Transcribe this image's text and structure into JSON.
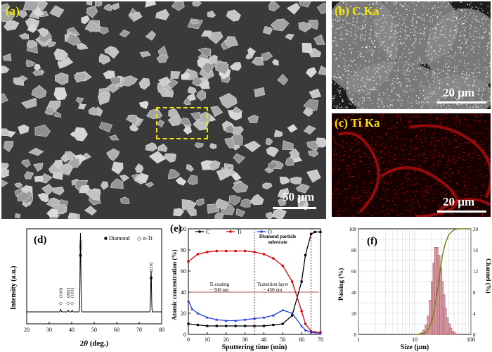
{
  "panels": {
    "a": {
      "label": "(a)",
      "scale": "50 µm"
    },
    "b": {
      "label": "(b) C Ka",
      "scale": "20 µm"
    },
    "c": {
      "label": "(c) Ti Ka",
      "scale": "20 µm"
    },
    "d": {
      "label": "(d)",
      "ylabel": "Intensity (a.u.)",
      "xlabel_pre": "2",
      "xlabel_theta": "θ",
      "xlabel_post": " (deg.)",
      "legend_diamond": "■ Diamond",
      "legend_ti": "◇ α-Ti",
      "peak_labels": [
        "(100)",
        "(002)",
        "(101)",
        "(111)",
        "(220)"
      ],
      "xticks": [
        "20",
        "30",
        "40",
        "50",
        "60",
        "70",
        "80"
      ]
    },
    "e": {
      "label": "(e)",
      "ylabel": "Atomic concentration (%)",
      "xlabel": "Sputtering time (min)",
      "legend": [
        "C",
        "Ti",
        "O"
      ],
      "annot_substrate_1": "Diamond particle",
      "annot_substrate_2": "substrate",
      "annot_coating_1": "Ti coating",
      "annot_coating_2": "~ 500 nm",
      "annot_transition_1": "Transition layer",
      "annot_transition_2": "~ 450 nm",
      "xticks": [
        "0",
        "10",
        "20",
        "30",
        "40",
        "50",
        "60",
        "70"
      ],
      "yticks": [
        "0",
        "20",
        "40",
        "60",
        "80",
        "100"
      ]
    },
    "f": {
      "label": "(f)",
      "ylabel_left": "Passing (%)",
      "ylabel_right": "Channel (%)",
      "xlabel": "Size (µm)",
      "xticks": [
        "1",
        "10",
        "100"
      ],
      "yticks_left": [
        "0",
        "20",
        "40",
        "60",
        "80",
        "100"
      ],
      "yticks_right": [
        "0",
        "4",
        "8",
        "12",
        "16",
        "20"
      ]
    }
  },
  "chart_data": [
    {
      "panel": "d",
      "type": "line",
      "xlabel": "2θ (deg.)",
      "ylabel": "Intensity (a.u.)",
      "xlim": [
        20,
        80
      ],
      "series": [
        {
          "name": "",
          "x": [
            20,
            35.1,
            38.4,
            40.2,
            43.9,
            75.3,
            80
          ],
          "y": [
            0.06,
            0.09,
            0.08,
            0.08,
            1.0,
            0.55,
            0.06
          ]
        }
      ],
      "peaks": [
        {
          "label": "(100)",
          "x": 35.1,
          "phase": "α-Ti"
        },
        {
          "label": "(002)",
          "x": 38.4,
          "phase": "α-Ti"
        },
        {
          "label": "(101)",
          "x": 40.2,
          "phase": "α-Ti"
        },
        {
          "label": "(111)",
          "x": 43.9,
          "phase": "Diamond"
        },
        {
          "label": "(220)",
          "x": 75.3,
          "phase": "Diamond"
        }
      ]
    },
    {
      "panel": "e",
      "type": "line",
      "xlabel": "Sputtering time (min)",
      "ylabel": "Atomic concentration (%)",
      "xlim": [
        0,
        70
      ],
      "ylim": [
        0,
        100
      ],
      "series": [
        {
          "name": "C",
          "color": "#000000",
          "x": [
            0,
            5,
            10,
            15,
            20,
            25,
            30,
            35,
            40,
            45,
            50,
            55,
            60,
            62,
            65,
            67,
            70
          ],
          "y": [
            10,
            9,
            8,
            8,
            8,
            8,
            8,
            8,
            8,
            9,
            10,
            18,
            50,
            75,
            95,
            97,
            97
          ]
        },
        {
          "name": "Ti",
          "color": "#e00000",
          "x": [
            0,
            5,
            10,
            15,
            20,
            25,
            30,
            35,
            40,
            45,
            50,
            55,
            60,
            62,
            65,
            67,
            70
          ],
          "y": [
            69,
            76,
            78,
            79,
            79,
            79,
            79,
            78,
            76,
            72,
            65,
            50,
            22,
            10,
            3,
            2,
            2
          ]
        },
        {
          "name": "O",
          "color": "#1f3fe0",
          "x": [
            0,
            2,
            5,
            10,
            15,
            20,
            25,
            30,
            35,
            40,
            45,
            50,
            55,
            60,
            62,
            65,
            70
          ],
          "y": [
            32,
            24,
            20,
            16,
            14,
            13,
            13,
            14,
            15,
            16,
            18,
            23,
            20,
            8,
            4,
            2,
            1
          ]
        }
      ],
      "vlines": [
        35,
        65
      ]
    },
    {
      "panel": "f",
      "type": "bar",
      "xlabel": "Size (µm)",
      "xscale": "log",
      "xlim": [
        1,
        100
      ],
      "series": [
        {
          "name": "Passing",
          "axis": "left",
          "ylim": [
            0,
            100
          ],
          "x": [
            10,
            13,
            16,
            18,
            20,
            22,
            25,
            28,
            31,
            35,
            40,
            45,
            50,
            60,
            80,
            100
          ],
          "y": [
            0,
            0.5,
            2,
            6,
            12,
            22,
            40,
            58,
            74,
            86,
            94,
            97,
            99,
            100,
            100,
            100
          ]
        },
        {
          "name": "Channel",
          "axis": "right",
          "ylim": [
            0,
            20
          ],
          "x": [
            13,
            14.5,
            16,
            17.5,
            19,
            20.5,
            22,
            23.5,
            25,
            27,
            29,
            31,
            33,
            35,
            38,
            41,
            44,
            48,
            52,
            56
          ],
          "y": [
            0.3,
            0.8,
            1.8,
            3.5,
            6.5,
            10,
            13.5,
            16.5,
            16.5,
            15,
            12.5,
            10,
            7.5,
            5,
            3.2,
            2,
            1.2,
            0.6,
            0.3,
            0.1
          ]
        }
      ]
    }
  ]
}
